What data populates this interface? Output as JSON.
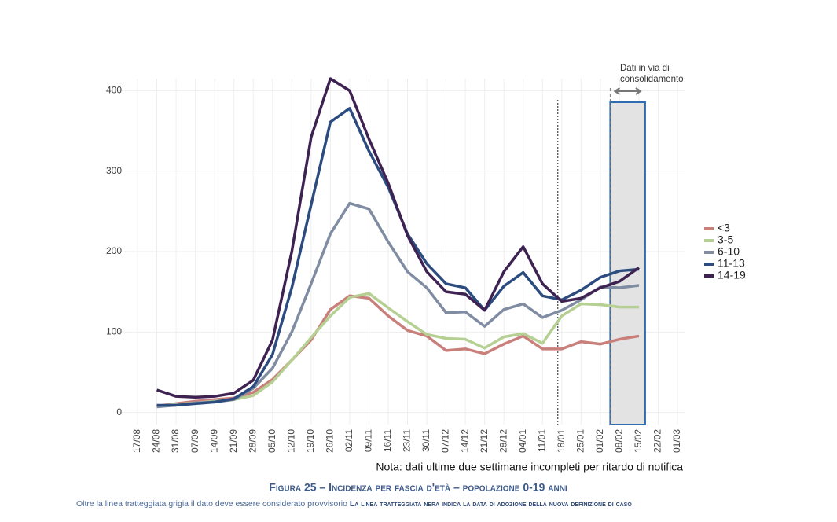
{
  "chart_data": {
    "type": "line",
    "categories": [
      "17/08",
      "24/08",
      "31/08",
      "07/09",
      "14/09",
      "21/09",
      "28/09",
      "05/10",
      "12/10",
      "19/10",
      "26/10",
      "02/11",
      "09/11",
      "16/11",
      "23/11",
      "30/11",
      "07/12",
      "14/12",
      "21/12",
      "28/12",
      "04/01",
      "11/01",
      "18/01",
      "25/01",
      "01/02",
      "08/02",
      "15/02",
      "22/02",
      "01/03"
    ],
    "series": [
      {
        "name": "<3",
        "color": "#c97f7a",
        "values": [
          null,
          8,
          11,
          14,
          16,
          18,
          25,
          41,
          65,
          90,
          128,
          145,
          142,
          120,
          102,
          95,
          77,
          79,
          73,
          85,
          95,
          79,
          79,
          88,
          85,
          91,
          95,
          null,
          null
        ]
      },
      {
        "name": "3-5",
        "color": "#b5d092",
        "values": [
          null,
          8,
          10,
          12,
          14,
          16,
          21,
          38,
          65,
          93,
          120,
          143,
          148,
          130,
          113,
          97,
          92,
          91,
          80,
          94,
          98,
          86,
          120,
          135,
          134,
          131,
          131,
          null,
          null
        ]
      },
      {
        "name": "6-10",
        "color": "#808ca2",
        "values": [
          null,
          7,
          9,
          12,
          13,
          16,
          30,
          55,
          100,
          160,
          222,
          260,
          253,
          212,
          175,
          155,
          124,
          125,
          107,
          128,
          135,
          118,
          127,
          140,
          156,
          155,
          158,
          null,
          null
        ]
      },
      {
        "name": "11-13",
        "color": "#2c4c80",
        "values": [
          null,
          9,
          9,
          11,
          13,
          17,
          32,
          72,
          155,
          258,
          361,
          378,
          325,
          280,
          222,
          185,
          160,
          155,
          127,
          157,
          174,
          145,
          140,
          152,
          168,
          176,
          178,
          null,
          null
        ]
      },
      {
        "name": "14-19",
        "color": "#3e2352",
        "values": [
          null,
          28,
          20,
          19,
          20,
          24,
          40,
          90,
          200,
          342,
          415,
          400,
          340,
          285,
          220,
          175,
          150,
          147,
          127,
          175,
          206,
          160,
          138,
          142,
          155,
          163,
          180,
          null,
          null
        ]
      }
    ],
    "ylim": [
      -15,
      415
    ],
    "yticks": [
      0,
      100,
      200,
      300,
      400
    ],
    "grid": true,
    "legend": "right",
    "annotation_lines": [
      "Dati in via di",
      "consolidamento"
    ],
    "note": "Nota: dati ultime due settimane incompleti per ritardo di notifica",
    "title": "Figura 25 – Incidenza per fascia d'età – popolazione 0-19 anni",
    "footnote": "Oltre la linea tratteggiata grigia il dato deve essere considerato provvisorio",
    "footnote_bold": "La linea tratteggiata nera indica la data di adozione della nuova definizione di caso"
  }
}
